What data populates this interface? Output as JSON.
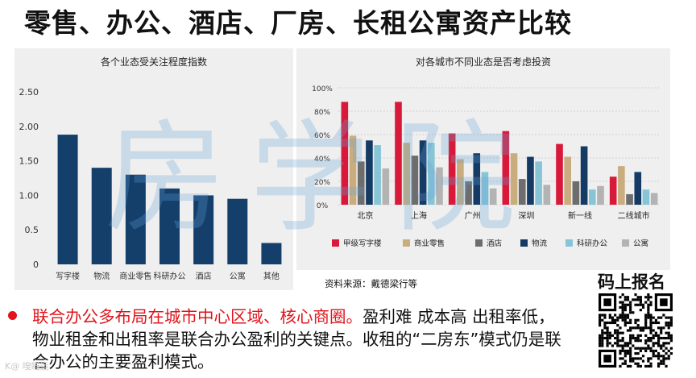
{
  "page": {
    "title": "零售、办公、酒店、厂房、长租公寓资产比较",
    "source": "资料来源：戴德梁行等",
    "qr_title": "码上报名",
    "watermark": "房学院",
    "logo_text": "K@ 嗖瞄运",
    "body_highlight": "联合办公多布局在城市中心区域、核心商圈。",
    "body_rest": "盈利难 成本高 出租率低，物业租金和出租率是联合办公盈利的关键点。收租的“二房东”模式仍是联合办公的主要盈利模式。"
  },
  "chart_data": [
    {
      "type": "bar",
      "title": "各个业态受关注程度指数",
      "categories": [
        "写字楼",
        "物流",
        "商业零售",
        "科研办公",
        "酒店",
        "公寓",
        "其他"
      ],
      "values": [
        1.88,
        1.4,
        1.3,
        1.1,
        1.0,
        0.95,
        0.31
      ],
      "ylim": [
        0,
        2.5
      ],
      "yticks": [
        "0",
        "0.5",
        "1.00",
        "1.50",
        "2.00",
        "2.50"
      ],
      "color": "#143f6b",
      "grid": false
    },
    {
      "type": "bar",
      "title": "对各城市不同业态是否考虑投资",
      "categories": [
        "北京",
        "上海",
        "广州",
        "深圳",
        "新一线",
        "二线城市"
      ],
      "ylim": [
        0,
        100
      ],
      "yticks": [
        "0%",
        "20%",
        "40%",
        "60%",
        "80%",
        "100%"
      ],
      "legend_position": "bottom",
      "series": [
        {
          "name": "甲级写字楼",
          "color": "#d8193a",
          "values": [
            88,
            88,
            61,
            63,
            52,
            24
          ]
        },
        {
          "name": "商业零售",
          "color": "#c9ad7e",
          "values": [
            59,
            53,
            39,
            44,
            41,
            33
          ]
        },
        {
          "name": "酒店",
          "color": "#6d6d6d",
          "values": [
            37,
            42,
            20,
            22,
            20,
            9
          ]
        },
        {
          "name": "物流",
          "color": "#153a63",
          "values": [
            55,
            55,
            44,
            41,
            50,
            28
          ]
        },
        {
          "name": "科研办公",
          "color": "#87c5d6",
          "values": [
            51,
            53,
            28,
            37,
            13,
            13
          ]
        },
        {
          "name": "公寓",
          "color": "#b3b3b3",
          "values": [
            31,
            32,
            14,
            17,
            16,
            10
          ]
        }
      ]
    }
  ]
}
